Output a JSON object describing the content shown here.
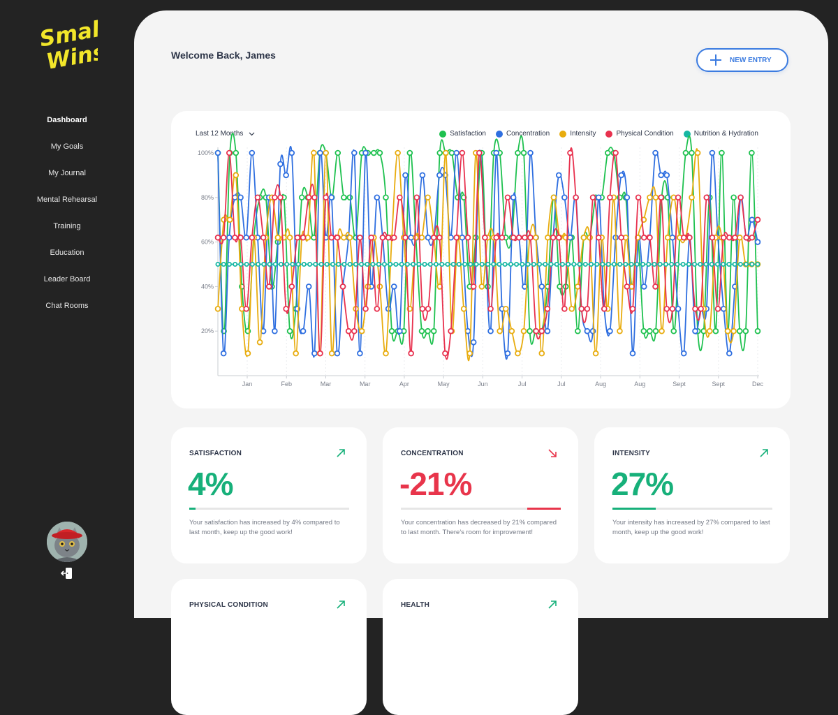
{
  "brand": {
    "logo_line1": "Small",
    "logo_line2": "Wins",
    "logo_color": "#f2e62a"
  },
  "sidebar": {
    "items": [
      {
        "label": "Dashboard",
        "active": true
      },
      {
        "label": "My Goals"
      },
      {
        "label": "My Journal"
      },
      {
        "label": "Mental Rehearsal"
      },
      {
        "label": "Training"
      },
      {
        "label": "Education"
      },
      {
        "label": "Leader Board"
      },
      {
        "label": "Chat Rooms"
      }
    ]
  },
  "header": {
    "welcome": "Welcome Back, James",
    "new_entry_label": "NEW ENTRY"
  },
  "chart_filter": {
    "selected": "Last 12 Months"
  },
  "chart_data": {
    "type": "line",
    "title": "",
    "xlabel": "",
    "ylabel": "",
    "ylim": [
      0,
      100
    ],
    "y_ticks": [
      "20%",
      "40%",
      "60%",
      "80%",
      "100%"
    ],
    "x_ticks": [
      "Jan",
      "Feb",
      "Mar",
      "Mar",
      "Apr",
      "May",
      "Jun",
      "Jul",
      "Jul",
      "Aug",
      "Aug",
      "Sept",
      "Sept",
      "Dec"
    ],
    "legend_position": "top-right",
    "series": [
      {
        "name": "Satisfaction",
        "color": "#1ec14f",
        "values": [
          100,
          20,
          100,
          100,
          40,
          20,
          62,
          80,
          80,
          40,
          60,
          80,
          20,
          30,
          80,
          80,
          62,
          100,
          100,
          80,
          100,
          80,
          80,
          62,
          100,
          100,
          100,
          100,
          80,
          20,
          20,
          20,
          100,
          62,
          20,
          20,
          20,
          100,
          100,
          100,
          80,
          80,
          40,
          62,
          100,
          40,
          100,
          100,
          62,
          62,
          100,
          100,
          20,
          20,
          20,
          40,
          80,
          40,
          40,
          62,
          20,
          62,
          62,
          80,
          80,
          100,
          100,
          80,
          80,
          40,
          62,
          20,
          20,
          20,
          80,
          80,
          20,
          62,
          100,
          100,
          20,
          20,
          80,
          20,
          100,
          20,
          80,
          20,
          20,
          100,
          20
        ]
      },
      {
        "name": "Concentration",
        "color": "#2f6fe0",
        "values": [
          100,
          10,
          62,
          80,
          80,
          62,
          100,
          62,
          20,
          80,
          20,
          95,
          90,
          100,
          30,
          20,
          40,
          10,
          100,
          62,
          80,
          10,
          40,
          62,
          100,
          10,
          100,
          40,
          80,
          62,
          30,
          40,
          20,
          90,
          62,
          62,
          90,
          62,
          62,
          90,
          90,
          62,
          100,
          62,
          20,
          15,
          100,
          62,
          20,
          100,
          30,
          10,
          80,
          62,
          40,
          100,
          62,
          40,
          20,
          62,
          90,
          80,
          62,
          80,
          30,
          20,
          20,
          80,
          30,
          20,
          62,
          90,
          80,
          10,
          62,
          40,
          62,
          100,
          90,
          90,
          62,
          30,
          10,
          62,
          20,
          30,
          30,
          100,
          62,
          30,
          10,
          40,
          80,
          62,
          70,
          60
        ]
      },
      {
        "name": "Intensity",
        "color": "#e8ac0e",
        "values": [
          30,
          70,
          70,
          90,
          30,
          10,
          62,
          15,
          62,
          80,
          62,
          62,
          62,
          10,
          62,
          62,
          100,
          10,
          100,
          10,
          62,
          62,
          62,
          30,
          20,
          40,
          62,
          40,
          10,
          62,
          100,
          62,
          30,
          62,
          62,
          80,
          62,
          40,
          100,
          20,
          62,
          30,
          10,
          100,
          40,
          62,
          62,
          20,
          30,
          20,
          10,
          20,
          62,
          62,
          10,
          62,
          80,
          62,
          62,
          30,
          40,
          62,
          62,
          10,
          62,
          30,
          80,
          20,
          62,
          40,
          62,
          70,
          80,
          80,
          20,
          62,
          80,
          62,
          62,
          80,
          100,
          30,
          20,
          62,
          62,
          20,
          20,
          62,
          50,
          50,
          50
        ]
      },
      {
        "name": "Physical Condition",
        "color": "#e8314e",
        "values": [
          62,
          62,
          100,
          62,
          62,
          30,
          62,
          80,
          62,
          40,
          80,
          80,
          30,
          40,
          62,
          62,
          80,
          80,
          10,
          80,
          62,
          62,
          40,
          20,
          20,
          62,
          30,
          62,
          30,
          62,
          62,
          62,
          80,
          62,
          10,
          80,
          30,
          30,
          62,
          62,
          10,
          20,
          62,
          100,
          62,
          40,
          100,
          62,
          30,
          62,
          62,
          80,
          62,
          62,
          62,
          62,
          20,
          20,
          30,
          62,
          62,
          30,
          100,
          80,
          30,
          30,
          80,
          62,
          30,
          80,
          100,
          62,
          40,
          30,
          80,
          62,
          62,
          40,
          80,
          30,
          30,
          80,
          62,
          62,
          30,
          30,
          80,
          62,
          30,
          62,
          62,
          62,
          80,
          62,
          62,
          70
        ]
      },
      {
        "name": "Nutrition & Hydration",
        "color": "#17b7a3",
        "values": [
          50,
          50,
          50,
          50,
          50,
          50,
          50,
          50,
          50,
          50,
          50,
          50,
          50,
          50,
          50,
          50,
          50,
          50,
          50,
          50,
          50,
          50,
          50,
          50,
          50,
          50,
          50,
          50,
          50,
          50,
          50,
          50,
          50,
          50,
          50,
          50,
          50,
          50,
          50,
          50,
          50,
          50,
          50,
          50,
          50,
          50,
          50,
          50,
          50,
          50,
          50,
          50,
          50,
          50,
          50,
          50,
          50,
          50,
          50,
          50,
          50,
          50,
          50,
          50,
          50,
          50,
          50,
          50,
          50,
          50,
          50,
          50,
          50,
          50,
          50,
          50,
          50,
          50,
          50,
          50,
          50,
          50,
          50,
          50,
          50,
          50,
          50,
          50,
          50,
          50,
          50,
          50,
          50,
          50,
          50
        ]
      }
    ]
  },
  "stats": [
    {
      "title": "SATISFACTION",
      "value": "4%",
      "percent": 4,
      "trend": "up",
      "color": "#17b07a",
      "description": "Your satisfaction has increased by 4% compared to last month, keep up the good work!"
    },
    {
      "title": "CONCENTRATION",
      "value": "-21%",
      "percent": 21,
      "trend": "down",
      "color": "#e8354b",
      "description": "Your concentration has decreased by 21% compared to last month. There's room for improvement!"
    },
    {
      "title": "INTENSITY",
      "value": "27%",
      "percent": 27,
      "trend": "up",
      "color": "#17b07a",
      "description": "Your intensity has increased by 27% compared to last month, keep up the good work!"
    },
    {
      "title": "PHYSICAL CONDITION",
      "trend": "up",
      "color": "#17b07a"
    },
    {
      "title": "HEALTH",
      "trend": "up",
      "color": "#17b07a"
    }
  ]
}
